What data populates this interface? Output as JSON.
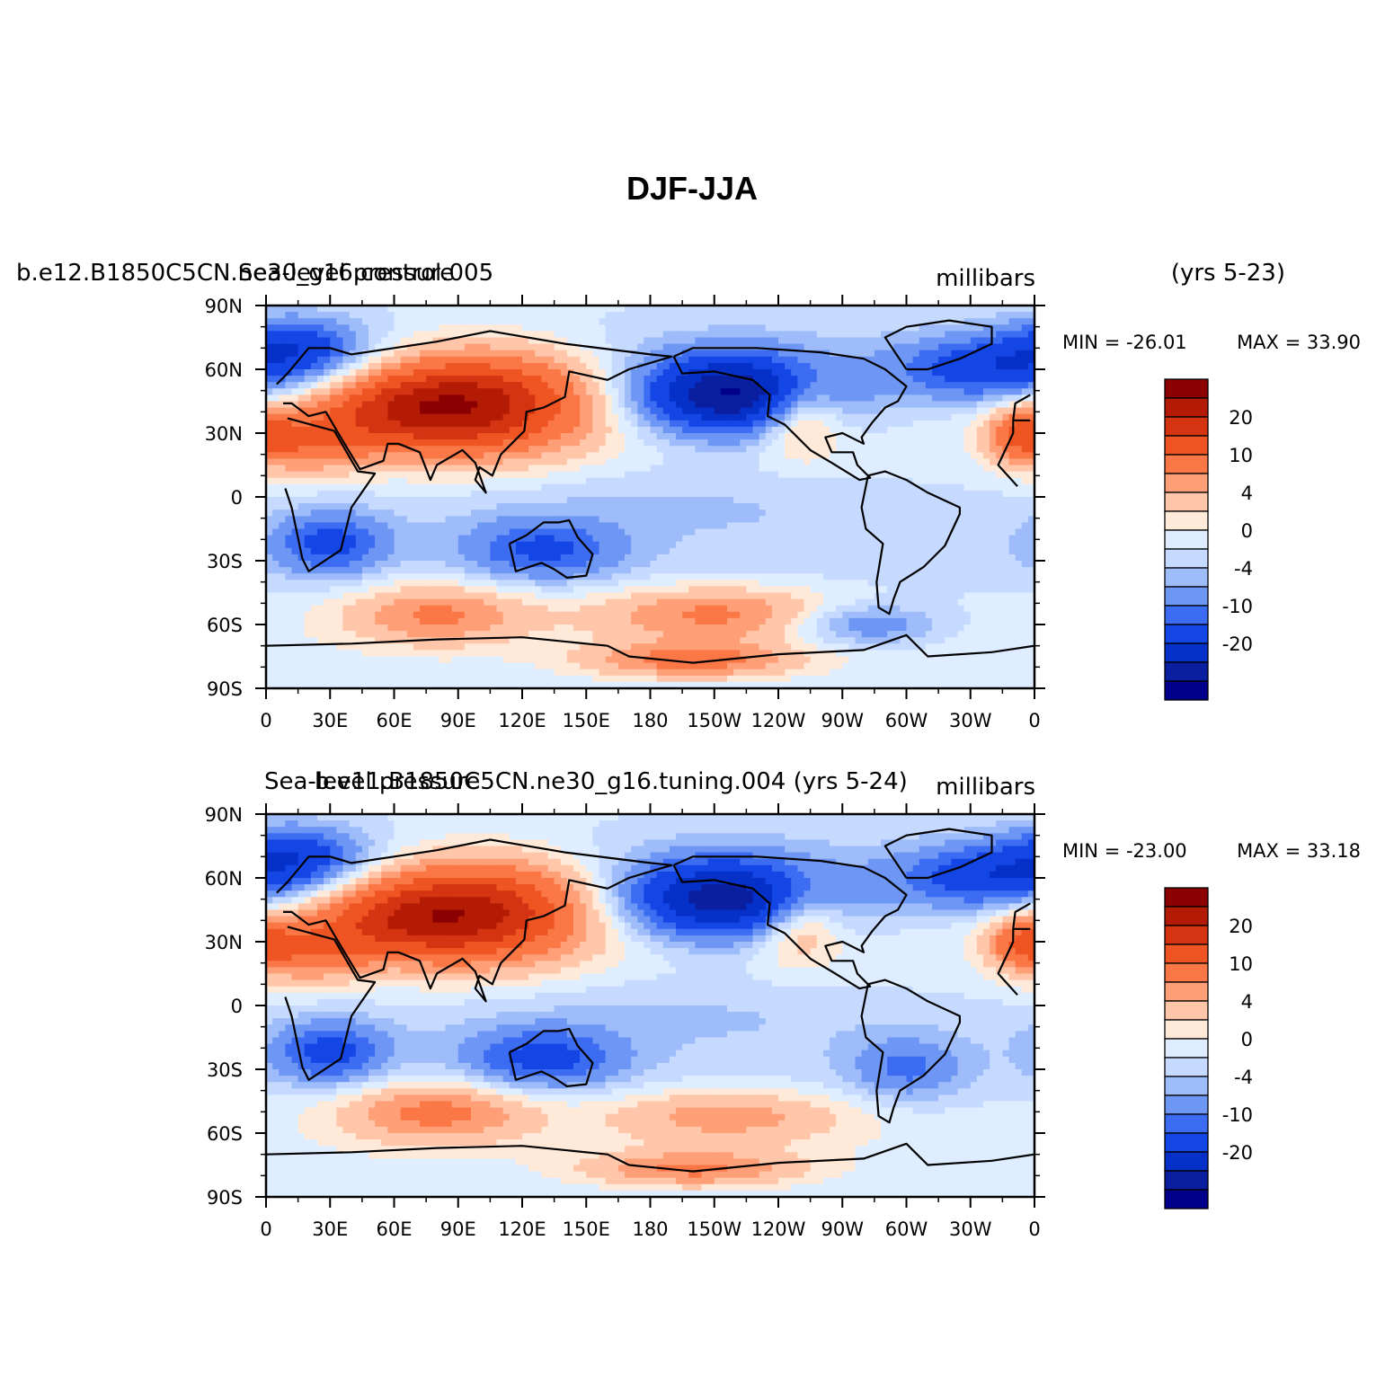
{
  "figure_title": "DJF-JJA",
  "colors": {
    "levels": [
      "#00008b",
      "#0a1ea0",
      "#0531c8",
      "#1446e6",
      "#3c6cf2",
      "#6e96f5",
      "#9ebcfa",
      "#c6daff",
      "#deedff",
      "#ffe9d8",
      "#ffc6aa",
      "#ff9f78",
      "#fb7746",
      "#ee5522",
      "#d43411",
      "#b41b05",
      "#8b0000"
    ],
    "coast": "#000000"
  },
  "chart_data": [
    {
      "type": "heatmap",
      "case_label": "b.e12.B1850C5CN.ne30_g16.control.005",
      "variable_label": "Sea-level pressure",
      "units": "millibars",
      "years": "(yrs 5-23)",
      "min_label": "MIN = -26.01",
      "max_label": "MAX =  33.90",
      "min": -26.01,
      "max": 33.9,
      "xticks": [
        "0",
        "30E",
        "60E",
        "90E",
        "120E",
        "150E",
        "180",
        "150W",
        "120W",
        "90W",
        "60W",
        "30W",
        "0"
      ],
      "yticks": [
        "90N",
        "60N",
        "30N",
        "0",
        "30S",
        "60S",
        "90S"
      ],
      "colorbar_labels": [
        "20",
        "10",
        "4",
        "0",
        "-4",
        "-10",
        "-20"
      ],
      "features": [
        {
          "lon": 100,
          "lat": 45,
          "amp": 25,
          "slon": 38,
          "slat": 17
        },
        {
          "lon": 60,
          "lat": 40,
          "amp": 12,
          "slon": 30,
          "slat": 12
        },
        {
          "lon": 20,
          "lat": 25,
          "amp": 10,
          "slon": 20,
          "slat": 10
        },
        {
          "lon": 220,
          "lat": 48,
          "amp": -26,
          "slon": 32,
          "slat": 13
        },
        {
          "lon": 335,
          "lat": 60,
          "amp": -12,
          "slon": 28,
          "slat": 10
        },
        {
          "lon": 15,
          "lat": 70,
          "amp": -12,
          "slon": 22,
          "slat": 10
        },
        {
          "lon": 250,
          "lat": 40,
          "amp": 12,
          "slon": 14,
          "slat": 13
        },
        {
          "lon": 355,
          "lat": 30,
          "amp": 13,
          "slon": 12,
          "slat": 9
        },
        {
          "lon": 30,
          "lat": -22,
          "amp": -11,
          "slon": 18,
          "slat": 10
        },
        {
          "lon": 130,
          "lat": -25,
          "amp": -10,
          "slon": 25,
          "slat": 10
        },
        {
          "lon": 80,
          "lat": -55,
          "amp": 10,
          "slon": 30,
          "slat": 10
        },
        {
          "lon": 210,
          "lat": -55,
          "amp": 10,
          "slon": 40,
          "slat": 9
        },
        {
          "lon": 200,
          "lat": -77,
          "amp": 11,
          "slon": 35,
          "slat": 6
        },
        {
          "lon": 280,
          "lat": -60,
          "amp": -8,
          "slon": 25,
          "slat": 7
        },
        {
          "lon": 190,
          "lat": 0,
          "amp": -2,
          "slon": 80,
          "slat": 12
        }
      ]
    },
    {
      "type": "heatmap",
      "case_label": "b.e11.B1850C5CN.ne30_g16.tuning.004 (yrs 5-24)",
      "variable_label": "Sea-level pressure",
      "units": "millibars",
      "years": "",
      "min_label": "MIN = -23.00",
      "max_label": "MAX =  33.18",
      "min": -23.0,
      "max": 33.18,
      "xticks": [
        "0",
        "30E",
        "60E",
        "90E",
        "120E",
        "150E",
        "180",
        "150W",
        "120W",
        "90W",
        "60W",
        "30W",
        "0"
      ],
      "yticks": [
        "90N",
        "60N",
        "30N",
        "0",
        "30S",
        "60S",
        "90S"
      ],
      "colorbar_labels": [
        "20",
        "10",
        "4",
        "0",
        "-4",
        "-10",
        "-20"
      ],
      "features": [
        {
          "lon": 100,
          "lat": 45,
          "amp": 24,
          "slon": 38,
          "slat": 17
        },
        {
          "lon": 60,
          "lat": 40,
          "amp": 12,
          "slon": 30,
          "slat": 12
        },
        {
          "lon": 20,
          "lat": 25,
          "amp": 10,
          "slon": 20,
          "slat": 10
        },
        {
          "lon": 215,
          "lat": 50,
          "amp": -23,
          "slon": 34,
          "slat": 13
        },
        {
          "lon": 335,
          "lat": 60,
          "amp": -12,
          "slon": 28,
          "slat": 10
        },
        {
          "lon": 15,
          "lat": 70,
          "amp": -12,
          "slon": 22,
          "slat": 10
        },
        {
          "lon": 250,
          "lat": 40,
          "amp": 10,
          "slon": 14,
          "slat": 13
        },
        {
          "lon": 355,
          "lat": 30,
          "amp": 12,
          "slon": 12,
          "slat": 9
        },
        {
          "lon": 30,
          "lat": -22,
          "amp": -11,
          "slon": 18,
          "slat": 10
        },
        {
          "lon": 130,
          "lat": -25,
          "amp": -11,
          "slon": 25,
          "slat": 10
        },
        {
          "lon": 80,
          "lat": -50,
          "amp": 11,
          "slon": 32,
          "slat": 10
        },
        {
          "lon": 215,
          "lat": -52,
          "amp": 8,
          "slon": 40,
          "slat": 9
        },
        {
          "lon": 200,
          "lat": -77,
          "amp": 10,
          "slon": 35,
          "slat": 6
        },
        {
          "lon": 300,
          "lat": -30,
          "amp": -7,
          "slon": 18,
          "slat": 10
        },
        {
          "lon": 190,
          "lat": 0,
          "amp": -2,
          "slon": 80,
          "slat": 12
        }
      ]
    }
  ]
}
